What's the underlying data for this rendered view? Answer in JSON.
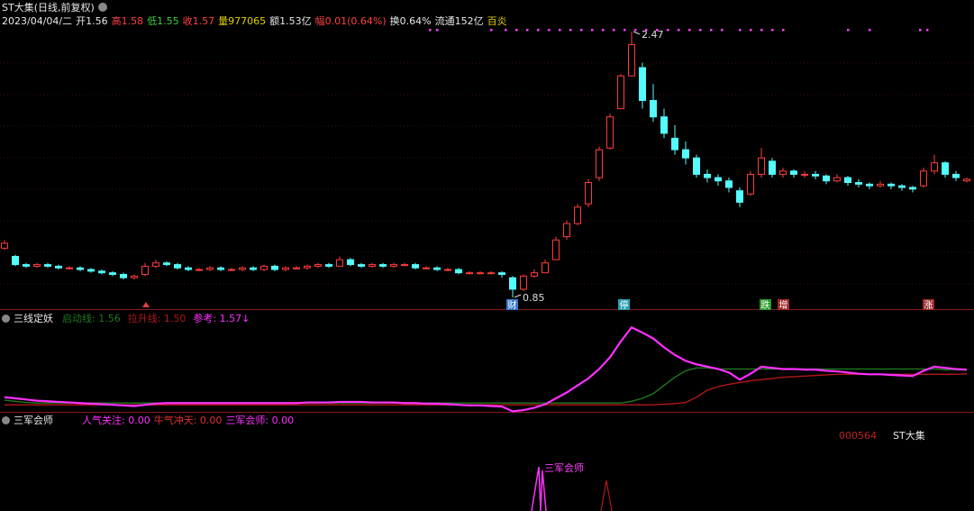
{
  "header": {
    "title": "ST大集(日线,前复权)",
    "date": "2023/04/04/二",
    "open": "开1.56",
    "high": "高1.58",
    "low": "低1.55",
    "close": "收1.57",
    "volume": "量977065",
    "amount": "额1.53亿",
    "change": "幅0.01(0.64%)",
    "turnover": "换0.64%",
    "float": "流通152亿",
    "tag": "百炎"
  },
  "price_panel": {
    "type": "candlestick",
    "ylim": [
      0.85,
      2.47
    ],
    "up_color": "#ff3c3c",
    "down_color": "#54fcfc",
    "candles": [
      [
        1.15,
        1.2,
        1.14,
        1.18
      ],
      [
        1.1,
        1.11,
        1.04,
        1.05
      ],
      [
        1.05,
        1.06,
        1.03,
        1.04
      ],
      [
        1.04,
        1.06,
        1.03,
        1.05
      ],
      [
        1.05,
        1.06,
        1.03,
        1.04
      ],
      [
        1.04,
        1.05,
        1.02,
        1.03
      ],
      [
        1.03,
        1.04,
        1.02,
        1.03
      ],
      [
        1.03,
        1.04,
        1.01,
        1.02
      ],
      [
        1.02,
        1.03,
        1.0,
        1.01
      ],
      [
        1.01,
        1.02,
        0.99,
        1.0
      ],
      [
        1.0,
        1.01,
        0.98,
        0.99
      ],
      [
        0.99,
        1.0,
        0.96,
        0.97
      ],
      [
        0.97,
        0.99,
        0.96,
        0.98
      ],
      [
        0.99,
        1.06,
        0.98,
        1.04
      ],
      [
        1.04,
        1.08,
        1.03,
        1.06
      ],
      [
        1.06,
        1.07,
        1.04,
        1.05
      ],
      [
        1.05,
        1.06,
        1.02,
        1.03
      ],
      [
        1.03,
        1.04,
        1.01,
        1.02
      ],
      [
        1.02,
        1.03,
        1.01,
        1.02
      ],
      [
        1.02,
        1.04,
        1.01,
        1.03
      ],
      [
        1.03,
        1.04,
        1.01,
        1.02
      ],
      [
        1.02,
        1.03,
        1.01,
        1.02
      ],
      [
        1.02,
        1.04,
        1.01,
        1.03
      ],
      [
        1.03,
        1.04,
        1.01,
        1.02
      ],
      [
        1.02,
        1.05,
        1.01,
        1.04
      ],
      [
        1.04,
        1.05,
        1.01,
        1.02
      ],
      [
        1.02,
        1.04,
        1.01,
        1.03
      ],
      [
        1.03,
        1.04,
        1.02,
        1.03
      ],
      [
        1.03,
        1.05,
        1.02,
        1.04
      ],
      [
        1.04,
        1.06,
        1.03,
        1.05
      ],
      [
        1.05,
        1.06,
        1.03,
        1.04
      ],
      [
        1.04,
        1.1,
        1.04,
        1.08
      ],
      [
        1.08,
        1.09,
        1.04,
        1.05
      ],
      [
        1.05,
        1.06,
        1.03,
        1.04
      ],
      [
        1.04,
        1.06,
        1.03,
        1.05
      ],
      [
        1.05,
        1.06,
        1.03,
        1.04
      ],
      [
        1.04,
        1.06,
        1.03,
        1.05
      ],
      [
        1.05,
        1.06,
        1.04,
        1.05
      ],
      [
        1.05,
        1.06,
        1.02,
        1.03
      ],
      [
        1.03,
        1.04,
        1.02,
        1.03
      ],
      [
        1.03,
        1.04,
        1.01,
        1.02
      ],
      [
        1.02,
        1.03,
        1.01,
        1.02
      ],
      [
        1.02,
        1.03,
        0.99,
        1.0
      ],
      [
        1.0,
        1.01,
        0.99,
        1.0
      ],
      [
        1.0,
        1.01,
        0.99,
        1.0
      ],
      [
        1.0,
        1.01,
        0.99,
        1.0
      ],
      [
        1.0,
        1.01,
        0.97,
        0.99
      ],
      [
        0.97,
        0.98,
        0.85,
        0.9
      ],
      [
        0.9,
        0.99,
        0.89,
        0.98
      ],
      [
        0.98,
        1.02,
        0.97,
        1.0
      ],
      [
        1.0,
        1.08,
        1.0,
        1.06
      ],
      [
        1.08,
        1.22,
        1.08,
        1.2
      ],
      [
        1.22,
        1.32,
        1.2,
        1.3
      ],
      [
        1.3,
        1.42,
        1.29,
        1.4
      ],
      [
        1.42,
        1.57,
        1.4,
        1.55
      ],
      [
        1.58,
        1.77,
        1.56,
        1.75
      ],
      [
        1.76,
        1.97,
        1.75,
        1.95
      ],
      [
        2.0,
        2.21,
        2.0,
        2.2
      ],
      [
        2.2,
        2.47,
        2.2,
        2.39
      ],
      [
        2.25,
        2.28,
        2.0,
        2.05
      ],
      [
        2.05,
        2.15,
        1.92,
        1.95
      ],
      [
        1.95,
        2.0,
        1.82,
        1.85
      ],
      [
        1.82,
        1.9,
        1.72,
        1.75
      ],
      [
        1.75,
        1.8,
        1.66,
        1.7
      ],
      [
        1.7,
        1.72,
        1.58,
        1.6
      ],
      [
        1.6,
        1.63,
        1.55,
        1.58
      ],
      [
        1.58,
        1.6,
        1.53,
        1.56
      ],
      [
        1.56,
        1.58,
        1.49,
        1.52
      ],
      [
        1.5,
        1.52,
        1.4,
        1.43
      ],
      [
        1.48,
        1.62,
        1.47,
        1.6
      ],
      [
        1.6,
        1.76,
        1.58,
        1.7
      ],
      [
        1.68,
        1.7,
        1.58,
        1.6
      ],
      [
        1.6,
        1.64,
        1.58,
        1.62
      ],
      [
        1.62,
        1.63,
        1.58,
        1.6
      ],
      [
        1.6,
        1.62,
        1.58,
        1.6
      ],
      [
        1.6,
        1.62,
        1.57,
        1.59
      ],
      [
        1.59,
        1.6,
        1.54,
        1.56
      ],
      [
        1.56,
        1.6,
        1.55,
        1.58
      ],
      [
        1.58,
        1.59,
        1.53,
        1.55
      ],
      [
        1.55,
        1.57,
        1.52,
        1.54
      ],
      [
        1.54,
        1.55,
        1.51,
        1.53
      ],
      [
        1.53,
        1.56,
        1.52,
        1.54
      ],
      [
        1.54,
        1.55,
        1.51,
        1.53
      ],
      [
        1.53,
        1.54,
        1.5,
        1.52
      ],
      [
        1.52,
        1.53,
        1.49,
        1.51
      ],
      [
        1.53,
        1.64,
        1.52,
        1.62
      ],
      [
        1.62,
        1.72,
        1.6,
        1.67
      ],
      [
        1.67,
        1.68,
        1.58,
        1.6
      ],
      [
        1.6,
        1.62,
        1.56,
        1.58
      ],
      [
        1.56,
        1.58,
        1.55,
        1.57
      ]
    ],
    "high_label": "2.47",
    "low_label": "0.85",
    "events": [
      {
        "text": "财",
        "color": "#3a7ad0"
      },
      {
        "text": "停",
        "color": "#2fa0b0"
      },
      {
        "text": "跌",
        "color": "#2a9a2a"
      },
      {
        "text": "增",
        "color": "#a02828"
      },
      {
        "text": "涨",
        "color": "#a02828"
      }
    ]
  },
  "indicator_panel": {
    "title": "三线定妖",
    "ylim": [
      0.85,
      2.57
    ],
    "series": [
      {
        "name": "启动线",
        "label": "启动线: 1.56",
        "color": "#1e7a1e",
        "values": [
          1.05,
          1.03,
          1.01,
          1.0,
          1.0,
          1.0,
          1.0,
          1.0,
          1.0,
          1.0,
          1.0,
          1.0,
          1.0,
          1.0,
          1.0,
          1.0,
          1.0,
          1.0,
          1.0,
          1.0,
          1.0,
          1.0,
          1.0,
          1.0,
          1.0,
          1.0,
          1.0,
          1.0,
          1.0,
          1.0,
          1.0,
          1.0,
          1.0,
          1.0,
          1.0,
          1.0,
          1.0,
          1.0,
          1.0,
          1.0,
          1.0,
          1.0,
          1.0,
          1.0,
          1.0,
          1.0,
          1.0,
          1.0,
          1.0,
          1.0,
          1.0,
          1.0,
          1.0,
          1.0,
          1.0,
          1.0,
          1.0,
          1.0,
          1.03,
          1.08,
          1.16,
          1.3,
          1.44,
          1.55,
          1.6,
          1.6,
          1.58,
          1.58,
          1.58,
          1.58,
          1.58,
          1.58,
          1.58,
          1.58,
          1.58,
          1.58,
          1.58,
          1.58,
          1.58,
          1.58,
          1.58,
          1.58,
          1.58,
          1.58,
          1.58,
          1.58,
          1.58,
          1.57,
          1.57,
          1.56
        ]
      },
      {
        "name": "拉升线",
        "label": "拉升线: 1.50",
        "color": "#b01818",
        "values": [
          0.97,
          0.97,
          0.97,
          0.97,
          0.97,
          0.97,
          0.97,
          0.97,
          0.97,
          0.97,
          0.97,
          0.97,
          0.97,
          0.97,
          0.97,
          0.97,
          0.97,
          0.97,
          0.97,
          0.97,
          0.97,
          0.97,
          0.97,
          0.97,
          0.97,
          0.97,
          0.97,
          0.97,
          0.97,
          0.97,
          0.97,
          0.97,
          0.97,
          0.97,
          0.97,
          0.97,
          0.97,
          0.97,
          0.97,
          0.97,
          0.97,
          0.97,
          0.97,
          0.97,
          0.97,
          0.97,
          0.97,
          0.97,
          0.97,
          0.97,
          0.97,
          0.97,
          0.97,
          0.97,
          0.97,
          0.97,
          0.97,
          0.97,
          0.97,
          0.97,
          0.97,
          0.98,
          0.99,
          1.01,
          1.1,
          1.22,
          1.28,
          1.32,
          1.35,
          1.38,
          1.4,
          1.42,
          1.44,
          1.45,
          1.46,
          1.47,
          1.48,
          1.49,
          1.49,
          1.49,
          1.49,
          1.49,
          1.49,
          1.49,
          1.49,
          1.49,
          1.49,
          1.49,
          1.49,
          1.5
        ]
      },
      {
        "name": "参考",
        "label": "参考: 1.57↓",
        "color": "#ff30ff",
        "values": [
          1.1,
          1.08,
          1.06,
          1.04,
          1.03,
          1.02,
          1.01,
          1.0,
          0.99,
          0.98,
          0.97,
          0.96,
          0.95,
          0.97,
          0.99,
          1.0,
          1.0,
          1.0,
          1.0,
          1.0,
          1.0,
          1.0,
          1.0,
          1.0,
          1.0,
          1.0,
          1.0,
          1.0,
          1.01,
          1.01,
          1.01,
          1.02,
          1.02,
          1.02,
          1.01,
          1.01,
          1.01,
          1.0,
          1.0,
          0.99,
          0.99,
          0.98,
          0.97,
          0.96,
          0.96,
          0.95,
          0.94,
          0.86,
          0.88,
          0.92,
          0.98,
          1.08,
          1.18,
          1.3,
          1.42,
          1.58,
          1.78,
          2.05,
          2.29,
          2.2,
          2.1,
          1.95,
          1.82,
          1.72,
          1.66,
          1.62,
          1.58,
          1.52,
          1.4,
          1.5,
          1.62,
          1.6,
          1.58,
          1.58,
          1.57,
          1.57,
          1.55,
          1.54,
          1.52,
          1.5,
          1.49,
          1.49,
          1.48,
          1.47,
          1.46,
          1.55,
          1.62,
          1.6,
          1.58,
          1.57
        ]
      }
    ]
  },
  "signal_panel": {
    "title": "三军会师",
    "labels": [
      {
        "text": "人气关注: 0.00",
        "color": "#ff30ff"
      },
      {
        "text": "牛气冲天: 0.00",
        "color": "#e03030"
      },
      {
        "text": "三军会师: 0.00",
        "color": "#ff30ff"
      }
    ],
    "code": "000564",
    "name": "ST大集",
    "spike_label": "三军会师"
  }
}
